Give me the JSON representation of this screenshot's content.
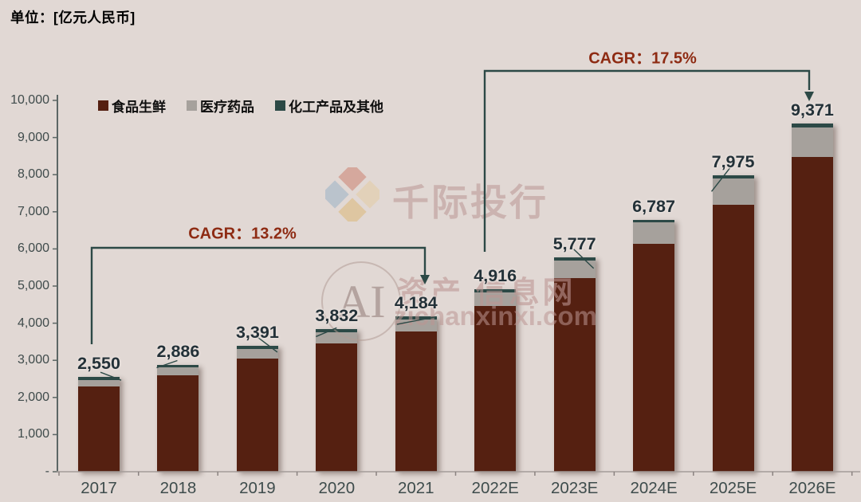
{
  "page": {
    "title": "单位：[亿元人民币]"
  },
  "colors": {
    "background": "#e1d8d4",
    "series_food": "#552011",
    "series_medical": "#a6a19c",
    "series_chemical": "#2c4946",
    "bracket": "#2c4946",
    "cagr_text": "#8e2b13",
    "value_label": "#233138",
    "axis_label": "#3f4b4b",
    "baseline": "#a49c99",
    "axis_line": "#5c6765"
  },
  "legend": {
    "items": [
      {
        "label": "食品生鲜",
        "color": "#552011"
      },
      {
        "label": "医疗药品",
        "color": "#a6a19c"
      },
      {
        "label": "化工产品及其他",
        "color": "#2c4946"
      }
    ]
  },
  "annotations": {
    "cagr_1": {
      "label": "CAGR：13.2%",
      "from": "2017",
      "to": "2021"
    },
    "cagr_2": {
      "label": "CAGR：17.5%",
      "from": "2022E",
      "to": "2026E"
    }
  },
  "watermark": {
    "brand": "千际投行",
    "ai_badge": "AI",
    "line1": "资产 信息网",
    "domain": "zichanxinxi.com"
  },
  "chart_data": {
    "type": "bar",
    "stacked": true,
    "title": "单位：[亿元人民币]",
    "xlabel": "",
    "ylabel": "亿元人民币",
    "categories": [
      "2017",
      "2018",
      "2019",
      "2020",
      "2021",
      "2022E",
      "2023E",
      "2024E",
      "2025E",
      "2026E"
    ],
    "series": [
      {
        "name": "食品生鲜",
        "color": "#552011",
        "values": [
          2290,
          2600,
          3040,
          3450,
          3770,
          4470,
          5215,
          6135,
          7190,
          8480
        ]
      },
      {
        "name": "医疗药品",
        "color": "#a6a19c",
        "values": [
          185,
          201,
          266,
          302,
          330,
          360,
          476,
          572,
          700,
          800
        ]
      },
      {
        "name": "化工产品及其他",
        "color": "#2c4946",
        "values": [
          75,
          85,
          85,
          80,
          84,
          86,
          86,
          80,
          85,
          91
        ]
      }
    ],
    "totals": [
      2550,
      2886,
      3391,
      3832,
      4184,
      4916,
      5777,
      6787,
      7975,
      9371
    ],
    "total_labels": [
      "2,550",
      "2,886",
      "3,391",
      "3,832",
      "4,184",
      "4,916",
      "5,777",
      "6,787",
      "7,975",
      "9,371"
    ],
    "ylim": [
      0,
      10000
    ],
    "ytick_step": 1000,
    "ytick_labels": [
      "-",
      "1,000",
      "2,000",
      "3,000",
      "4,000",
      "5,000",
      "6,000",
      "7,000",
      "8,000",
      "9,000",
      "10,000"
    ],
    "legend_position": "top-left",
    "grid": false,
    "cagr_annotations": [
      {
        "label": "CAGR：13.2%",
        "value_pct": 13.2,
        "span": [
          "2017",
          "2021"
        ]
      },
      {
        "label": "CAGR：17.5%",
        "value_pct": 17.5,
        "span": [
          "2022E",
          "2026E"
        ]
      }
    ]
  }
}
